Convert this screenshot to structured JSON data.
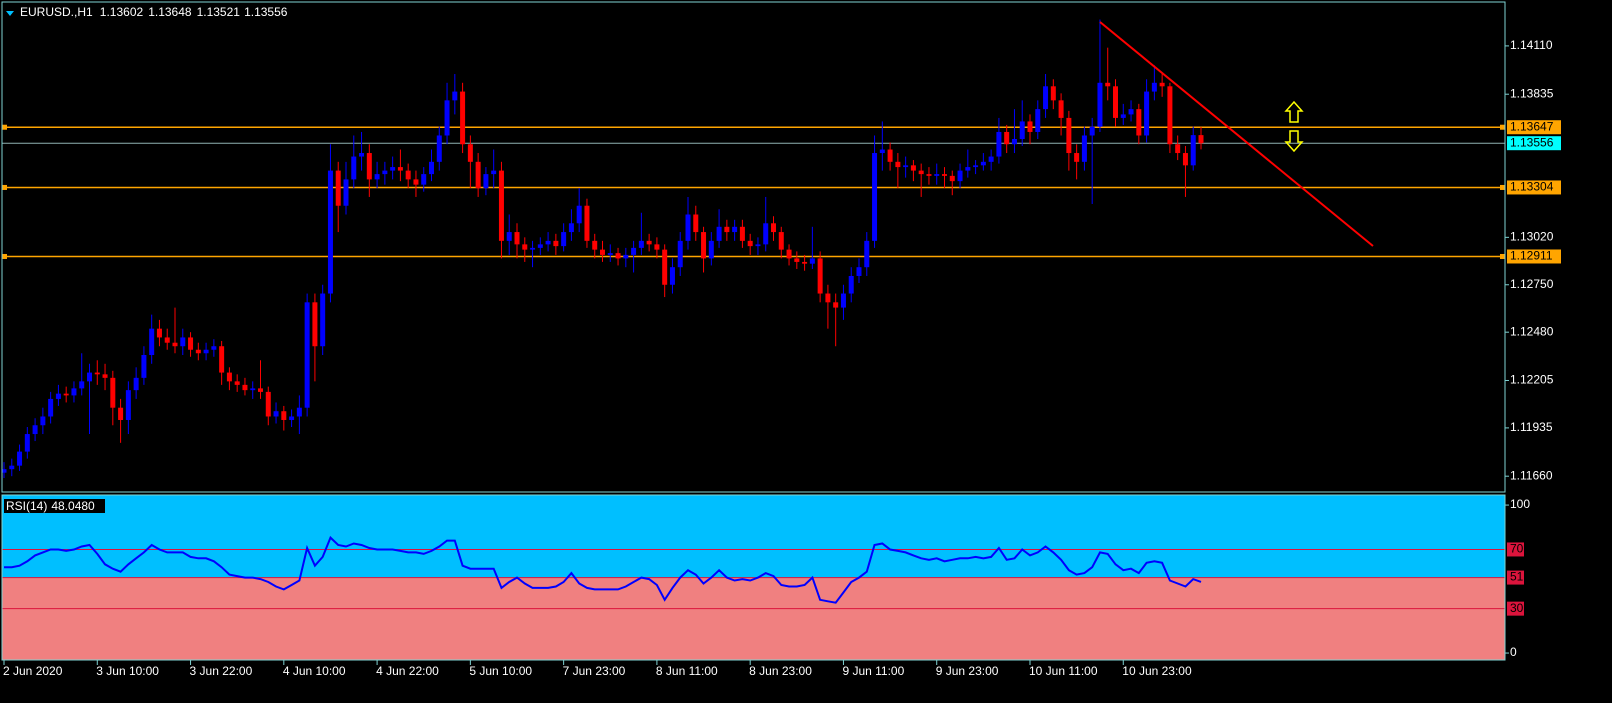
{
  "chart_data": [
    {
      "type": "candlestick",
      "symbol": "EURUSD.,H1",
      "up_color": "#0000ff",
      "down_color": "#ff0000",
      "level_color": "#ffa500",
      "price_color": "#00ffff",
      "ylim": [
        1.1157,
        1.1436
      ],
      "yticks": [
        {
          "value": 1.1411,
          "label": "1.14110"
        },
        1.13835,
        {
          "value": 1.1302,
          "label": "1.13020"
        },
        {
          "value": 1.1275,
          "label": "1.12750"
        },
        {
          "value": 1.1248,
          "label": "1.12480"
        },
        1.12205,
        1.11935,
        {
          "value": 1.1166,
          "label": "1.11660"
        }
      ],
      "levels": [
        1.13647,
        1.13304,
        1.12911
      ],
      "categories": [
        "2 Jun 2020",
        null,
        null,
        null,
        null,
        null,
        null,
        null,
        null,
        null,
        null,
        null,
        "3 Jun 10:00",
        null,
        null,
        null,
        null,
        null,
        null,
        null,
        null,
        null,
        null,
        null,
        "3 Jun 22:00",
        null,
        null,
        null,
        null,
        null,
        null,
        null,
        null,
        null,
        null,
        null,
        "4 Jun 10:00",
        null,
        null,
        null,
        null,
        null,
        null,
        null,
        null,
        null,
        null,
        null,
        "4 Jun 22:00",
        null,
        null,
        null,
        null,
        null,
        null,
        null,
        null,
        null,
        null,
        null,
        "5 Jun 10:00",
        null,
        null,
        null,
        null,
        null,
        null,
        null,
        null,
        null,
        null,
        null,
        "7 Jun 23:00",
        null,
        null,
        null,
        null,
        null,
        null,
        null,
        null,
        null,
        null,
        null,
        "8 Jun 11:00",
        null,
        null,
        null,
        null,
        null,
        null,
        null,
        null,
        null,
        null,
        null,
        "8 Jun 23:00",
        null,
        null,
        null,
        null,
        null,
        null,
        null,
        null,
        null,
        null,
        null,
        "9 Jun 11:00",
        null,
        null,
        null,
        null,
        null,
        null,
        null,
        null,
        null,
        null,
        null,
        "9 Jun 23:00",
        null,
        null,
        null,
        null,
        null,
        null,
        null,
        null,
        null,
        null,
        null,
        "10 Jun 11:00",
        null,
        null,
        null,
        null,
        null,
        null,
        null,
        null,
        null,
        null,
        null,
        "10 Jun 23:00",
        null,
        null,
        null,
        null,
        null,
        null,
        null,
        null,
        null,
        null
      ],
      "candles": [
        [
          1.1168,
          1.1174,
          1.1165,
          1.117
        ],
        [
          1.117,
          1.1176,
          1.1166,
          1.1172
        ],
        [
          1.1172,
          1.1184,
          1.1169,
          1.118
        ],
        [
          1.118,
          1.1194,
          1.1176,
          1.119
        ],
        [
          1.119,
          1.1199,
          1.1186,
          1.1195
        ],
        [
          1.1195,
          1.1205,
          1.119,
          1.12
        ],
        [
          1.12,
          1.1214,
          1.1196,
          1.121
        ],
        [
          1.121,
          1.1218,
          1.1206,
          1.1213
        ],
        [
          1.1213,
          1.1217,
          1.1208,
          1.1212
        ],
        [
          1.1212,
          1.122,
          1.1208,
          1.1216
        ],
        [
          1.1216,
          1.1236,
          1.1212,
          1.122
        ],
        [
          1.122,
          1.123,
          1.119,
          1.1225
        ],
        [
          1.1225,
          1.1232,
          1.1218,
          1.1224
        ],
        [
          1.1224,
          1.123,
          1.1215,
          1.1222
        ],
        [
          1.1222,
          1.1226,
          1.1195,
          1.1205
        ],
        [
          1.1205,
          1.121,
          1.1185,
          1.1198
        ],
        [
          1.1198,
          1.122,
          1.119,
          1.1215
        ],
        [
          1.1215,
          1.1228,
          1.121,
          1.1222
        ],
        [
          1.1222,
          1.124,
          1.1218,
          1.1235
        ],
        [
          1.1235,
          1.1258,
          1.123,
          1.125
        ],
        [
          1.125,
          1.1255,
          1.124,
          1.1245
        ],
        [
          1.1245,
          1.125,
          1.1238,
          1.1242
        ],
        [
          1.1242,
          1.1262,
          1.1236,
          1.124
        ],
        [
          1.124,
          1.125,
          1.1235,
          1.1245
        ],
        [
          1.1245,
          1.1248,
          1.1234,
          1.1238
        ],
        [
          1.1238,
          1.1242,
          1.1232,
          1.1236
        ],
        [
          1.1236,
          1.1242,
          1.1232,
          1.1238
        ],
        [
          1.1238,
          1.1244,
          1.1234,
          1.124
        ],
        [
          1.124,
          1.1243,
          1.1218,
          1.1225
        ],
        [
          1.1225,
          1.1228,
          1.1215,
          1.122
        ],
        [
          1.122,
          1.1224,
          1.1214,
          1.1218
        ],
        [
          1.1218,
          1.1222,
          1.1212,
          1.1215
        ],
        [
          1.1215,
          1.122,
          1.121,
          1.1216
        ],
        [
          1.1216,
          1.1232,
          1.121,
          1.1214
        ],
        [
          1.1214,
          1.1217,
          1.1195,
          1.12
        ],
        [
          1.12,
          1.1208,
          1.1196,
          1.1203
        ],
        [
          1.1203,
          1.1206,
          1.1192,
          1.1198
        ],
        [
          1.1198,
          1.1204,
          1.1194,
          1.12
        ],
        [
          1.12,
          1.1212,
          1.119,
          1.1205
        ],
        [
          1.1205,
          1.127,
          1.12,
          1.1265
        ],
        [
          1.1265,
          1.127,
          1.122,
          1.124
        ],
        [
          1.124,
          1.1275,
          1.1235,
          1.127
        ],
        [
          1.127,
          1.1355,
          1.1265,
          1.134
        ],
        [
          1.134,
          1.1345,
          1.1305,
          1.132
        ],
        [
          1.132,
          1.1345,
          1.1315,
          1.1335
        ],
        [
          1.1335,
          1.136,
          1.133,
          1.1348
        ],
        [
          1.1348,
          1.1362,
          1.134,
          1.135
        ],
        [
          1.135,
          1.1355,
          1.1325,
          1.1335
        ],
        [
          1.1335,
          1.1345,
          1.133,
          1.1338
        ],
        [
          1.1338,
          1.1345,
          1.1332,
          1.134
        ],
        [
          1.134,
          1.1348,
          1.1335,
          1.1342
        ],
        [
          1.1342,
          1.1352,
          1.1334,
          1.134
        ],
        [
          1.134,
          1.1344,
          1.133,
          1.1335
        ],
        [
          1.1335,
          1.134,
          1.1325,
          1.1332
        ],
        [
          1.1332,
          1.1342,
          1.1328,
          1.1338
        ],
        [
          1.1338,
          1.1352,
          1.1334,
          1.1345
        ],
        [
          1.1345,
          1.1365,
          1.134,
          1.136
        ],
        [
          1.136,
          1.139,
          1.1355,
          1.138
        ],
        [
          1.138,
          1.1395,
          1.1372,
          1.1385
        ],
        [
          1.1385,
          1.139,
          1.135,
          1.1355
        ],
        [
          1.1355,
          1.136,
          1.133,
          1.1345
        ],
        [
          1.1345,
          1.135,
          1.1325,
          1.133
        ],
        [
          1.133,
          1.1342,
          1.1326,
          1.1338
        ],
        [
          1.1338,
          1.1352,
          1.133,
          1.134
        ],
        [
          1.134,
          1.1345,
          1.129,
          1.13
        ],
        [
          1.13,
          1.1315,
          1.1292,
          1.1305
        ],
        [
          1.1305,
          1.131,
          1.129,
          1.1298
        ],
        [
          1.1298,
          1.1302,
          1.1288,
          1.1295
        ],
        [
          1.1295,
          1.13,
          1.1285,
          1.1296
        ],
        [
          1.1296,
          1.1302,
          1.1292,
          1.1298
        ],
        [
          1.1298,
          1.1305,
          1.1294,
          1.13
        ],
        [
          1.13,
          1.1304,
          1.1292,
          1.1297
        ],
        [
          1.1297,
          1.131,
          1.1294,
          1.1305
        ],
        [
          1.1305,
          1.1318,
          1.13,
          1.131
        ],
        [
          1.131,
          1.133,
          1.1305,
          1.132
        ],
        [
          1.132,
          1.1324,
          1.1296,
          1.13
        ],
        [
          1.13,
          1.1304,
          1.129,
          1.1295
        ],
        [
          1.1295,
          1.13,
          1.1288,
          1.1292
        ],
        [
          1.1292,
          1.1298,
          1.1288,
          1.1293
        ],
        [
          1.1293,
          1.1296,
          1.1286,
          1.129
        ],
        [
          1.129,
          1.1296,
          1.1285,
          1.1292
        ],
        [
          1.1292,
          1.13,
          1.1282,
          1.1296
        ],
        [
          1.1296,
          1.1316,
          1.1292,
          1.13
        ],
        [
          1.13,
          1.1304,
          1.1294,
          1.1298
        ],
        [
          1.1298,
          1.1302,
          1.129,
          1.1295
        ],
        [
          1.1295,
          1.1298,
          1.1268,
          1.1275
        ],
        [
          1.1275,
          1.129,
          1.127,
          1.1285
        ],
        [
          1.1285,
          1.1305,
          1.128,
          1.13
        ],
        [
          1.13,
          1.1325,
          1.1295,
          1.1315
        ],
        [
          1.1315,
          1.132,
          1.13,
          1.1305
        ],
        [
          1.1305,
          1.1308,
          1.1282,
          1.129
        ],
        [
          1.129,
          1.1305,
          1.1286,
          1.13
        ],
        [
          1.13,
          1.1318,
          1.1296,
          1.1308
        ],
        [
          1.1308,
          1.1312,
          1.13,
          1.1305
        ],
        [
          1.1305,
          1.1312,
          1.13,
          1.1308
        ],
        [
          1.1308,
          1.1312,
          1.1296,
          1.13
        ],
        [
          1.13,
          1.1304,
          1.1292,
          1.1297
        ],
        [
          1.1297,
          1.1302,
          1.1292,
          1.1298
        ],
        [
          1.1298,
          1.1325,
          1.1294,
          1.131
        ],
        [
          1.131,
          1.1314,
          1.13,
          1.1305
        ],
        [
          1.1305,
          1.1308,
          1.129,
          1.1295
        ],
        [
          1.1295,
          1.1298,
          1.1286,
          1.129
        ],
        [
          1.129,
          1.1294,
          1.1284,
          1.1288
        ],
        [
          1.1288,
          1.1292,
          1.1283,
          1.1287
        ],
        [
          1.1287,
          1.1308,
          1.1284,
          1.129
        ],
        [
          1.129,
          1.1294,
          1.1265,
          1.127
        ],
        [
          1.127,
          1.1275,
          1.125,
          1.1265
        ],
        [
          1.1265,
          1.127,
          1.124,
          1.1262
        ],
        [
          1.1262,
          1.1275,
          1.1255,
          1.127
        ],
        [
          1.127,
          1.1285,
          1.1265,
          1.128
        ],
        [
          1.128,
          1.129,
          1.1276,
          1.1285
        ],
        [
          1.1285,
          1.1305,
          1.128,
          1.13
        ],
        [
          1.13,
          1.136,
          1.1296,
          1.135
        ],
        [
          1.135,
          1.1368,
          1.134,
          1.1352
        ],
        [
          1.1352,
          1.1356,
          1.134,
          1.1345
        ],
        [
          1.1345,
          1.135,
          1.133,
          1.1342
        ],
        [
          1.1342,
          1.1348,
          1.1336,
          1.1343
        ],
        [
          1.1343,
          1.1346,
          1.1334,
          1.134
        ],
        [
          1.134,
          1.1344,
          1.1325,
          1.1338
        ],
        [
          1.1338,
          1.1342,
          1.1332,
          1.1337
        ],
        [
          1.1337,
          1.1344,
          1.1332,
          1.1338
        ],
        [
          1.1338,
          1.1342,
          1.133,
          1.1337
        ],
        [
          1.1337,
          1.134,
          1.1326,
          1.1334
        ],
        [
          1.1334,
          1.1344,
          1.133,
          1.134
        ],
        [
          1.134,
          1.1352,
          1.1336,
          1.1342
        ],
        [
          1.1342,
          1.1346,
          1.1338,
          1.1343
        ],
        [
          1.1343,
          1.135,
          1.134,
          1.1345
        ],
        [
          1.1345,
          1.1352,
          1.134,
          1.1348
        ],
        [
          1.1348,
          1.137,
          1.1344,
          1.1362
        ],
        [
          1.1362,
          1.1366,
          1.135,
          1.1355
        ],
        [
          1.1355,
          1.1375,
          1.135,
          1.1358
        ],
        [
          1.1358,
          1.138,
          1.1354,
          1.1368
        ],
        [
          1.1368,
          1.1372,
          1.1355,
          1.1362
        ],
        [
          1.1362,
          1.138,
          1.1358,
          1.1375
        ],
        [
          1.1375,
          1.1395,
          1.137,
          1.1388
        ],
        [
          1.1388,
          1.1392,
          1.1375,
          1.138
        ],
        [
          1.138,
          1.1384,
          1.136,
          1.137
        ],
        [
          1.137,
          1.1374,
          1.134,
          1.135
        ],
        [
          1.135,
          1.1355,
          1.1335,
          1.1345
        ],
        [
          1.1345,
          1.1365,
          1.134,
          1.136
        ],
        [
          1.136,
          1.137,
          1.1321,
          1.1365
        ],
        [
          1.1365,
          1.1426,
          1.1362,
          1.139
        ],
        [
          1.139,
          1.141,
          1.138,
          1.1388
        ],
        [
          1.1388,
          1.1392,
          1.1365,
          1.137
        ],
        [
          1.137,
          1.1378,
          1.1366,
          1.1372
        ],
        [
          1.1372,
          1.138,
          1.1368,
          1.1375
        ],
        [
          1.1375,
          1.1378,
          1.1355,
          1.136
        ],
        [
          1.136,
          1.1392,
          1.1356,
          1.1385
        ],
        [
          1.1385,
          1.14,
          1.138,
          1.139
        ],
        [
          1.139,
          1.1395,
          1.1382,
          1.1388
        ],
        [
          1.1388,
          1.139,
          1.135,
          1.1355
        ],
        [
          1.1355,
          1.136,
          1.1346,
          1.135
        ],
        [
          1.135,
          1.1354,
          1.1325,
          1.1343
        ],
        [
          1.1343,
          1.1365,
          1.134,
          1.13602
        ],
        [
          1.13602,
          1.13648,
          1.13521,
          1.13556
        ]
      ]
    },
    {
      "type": "line",
      "title": "RSI(14)",
      "last_label": "48.0480",
      "color": "#0000ff",
      "fill_above": "#00bfff",
      "fill_below": "#f08080",
      "level_color": "#dc143c",
      "ylim": [
        -4.7,
        106.8
      ],
      "yticks": [
        0,
        100
      ],
      "levels": [
        70,
        51,
        30
      ],
      "values": [
        58,
        58,
        59,
        62,
        66,
        68,
        70,
        70,
        69,
        70,
        72,
        73,
        67,
        60,
        57,
        55,
        60,
        64,
        68,
        73,
        70,
        68,
        68,
        68,
        65,
        64,
        64,
        62,
        58,
        53,
        52,
        51,
        51,
        50,
        48,
        45,
        43,
        46,
        49,
        71,
        59,
        65,
        78,
        73,
        72,
        74,
        73,
        71,
        70,
        70,
        70,
        69,
        68,
        68,
        67,
        69,
        72,
        76,
        76,
        59,
        57,
        57,
        57,
        57,
        44,
        48,
        51,
        47,
        44,
        44,
        44,
        45,
        48,
        54,
        47,
        44,
        43,
        43,
        43,
        43,
        45,
        48,
        51,
        50,
        46,
        36,
        44,
        51,
        56,
        53,
        47,
        51,
        56,
        51,
        49,
        50,
        49,
        51,
        54,
        52,
        46,
        45,
        45,
        46,
        51,
        36,
        35,
        34,
        41,
        48,
        51,
        55,
        73,
        74,
        70,
        69,
        68,
        66,
        64,
        63,
        64,
        62,
        63,
        64,
        64,
        65,
        64,
        65,
        71,
        63,
        64,
        70,
        66,
        68,
        72,
        68,
        63,
        56,
        53,
        54,
        58,
        68,
        67,
        60,
        56,
        57,
        54,
        61,
        62,
        61,
        49,
        47,
        45,
        50,
        48.048
      ]
    }
  ]
}
